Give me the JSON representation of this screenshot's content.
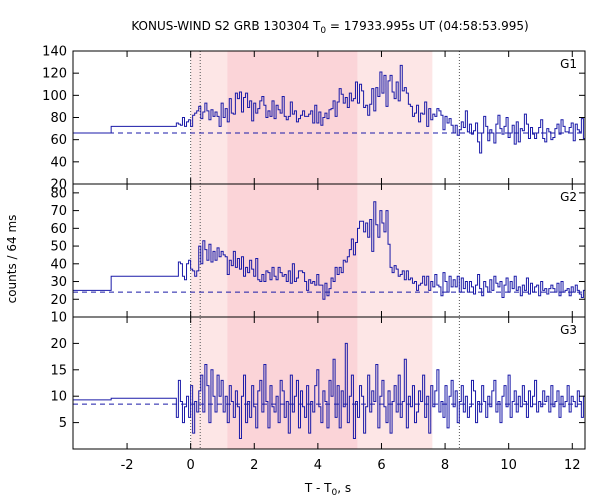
{
  "chart_data": {
    "type": "line",
    "title": "KONUS-WIND S2 GRB 130304 T",
    "title_sub": "0",
    "title_rest": " = 17933.995s UT (04:58:53.995)",
    "xlabel": "T - T",
    "xlabel_sub": "0",
    "xlabel_rest": ", s",
    "ylabel": "counts / 64 ms",
    "xlim": [
      -3.7,
      12.4
    ],
    "x_ticks": [
      -2,
      0,
      2,
      4,
      6,
      8,
      10,
      12
    ],
    "x_tick_labels": [
      "-2",
      "0",
      "2",
      "4",
      "6",
      "8",
      "10",
      "12"
    ],
    "shaded_regions": [
      {
        "x0": 0.0,
        "x1": 1.15,
        "color": "#fde6e6"
      },
      {
        "x0": 1.15,
        "x1": 5.25,
        "color": "#fbd4d8"
      },
      {
        "x0": 5.25,
        "x1": 7.6,
        "color": "#fde6e6"
      }
    ],
    "vertical_lines": [
      0.0,
      0.3,
      8.45
    ],
    "line_color": "#1a1aa8",
    "background_color": "#1a1aa8",
    "panels": [
      {
        "name": "G1",
        "ylim": [
          20,
          140
        ],
        "y_ticks": [
          20,
          40,
          60,
          80,
          100,
          120,
          140
        ],
        "y_tick_labels": [
          "20",
          "40",
          "60",
          "80",
          "100",
          "120",
          "140"
        ],
        "background": 66,
        "bins": [
          {
            "x0": -3.7,
            "x1": -2.5,
            "y": 66
          },
          {
            "x0": -2.5,
            "x1": -0.45,
            "y": 72
          }
        ],
        "start": -0.45,
        "dt": 0.064,
        "values": [
          75,
          74,
          73,
          80,
          72,
          76,
          78,
          72,
          82,
          84,
          86,
          90,
          79,
          85,
          93,
          86,
          78,
          87,
          81,
          85,
          81,
          72,
          93,
          80,
          88,
          76,
          97,
          84,
          83,
          102,
          97,
          103,
          85,
          98,
          102,
          89,
          95,
          77,
          93,
          84,
          88,
          95,
          99,
          91,
          80,
          86,
          81,
          95,
          79,
          91,
          87,
          84,
          99,
          81,
          78,
          81,
          94,
          83,
          86,
          76,
          79,
          82,
          86,
          81,
          81,
          83,
          86,
          75,
          91,
          75,
          85,
          73,
          80,
          84,
          79,
          87,
          88,
          95,
          81,
          94,
          106,
          101,
          93,
          98,
          89,
          102,
          95,
          97,
          112,
          93,
          110,
          104,
          89,
          91,
          82,
          92,
          106,
          86,
          107,
          99,
          121,
          102,
          118,
          90,
          113,
          118,
          103,
          97,
          112,
          95,
          127,
          104,
          107,
          102,
          92,
          90,
          81,
          84,
          91,
          76,
          84,
          83,
          94,
          72,
          88,
          78,
          83,
          81,
          88,
          86,
          82,
          69,
          81,
          75,
          79,
          73,
          66,
          73,
          64,
          69,
          76,
          71,
          86,
          67,
          74,
          65,
          68,
          75,
          58,
          48,
          66,
          81,
          72,
          59,
          69,
          66,
          57,
          74,
          82,
          70,
          65,
          72,
          80,
          62,
          66,
          73,
          56,
          76,
          58,
          70,
          68,
          83,
          74,
          61,
          71,
          65,
          61,
          66,
          71,
          78,
          61,
          58,
          70,
          67,
          60,
          62,
          70,
          74,
          65,
          78,
          72,
          67,
          67,
          71,
          75,
          59,
          74,
          69,
          67,
          79,
          61,
          66,
          72,
          73,
          63,
          74,
          68,
          63,
          75,
          66,
          69,
          62,
          65,
          58,
          65
        ]
      },
      {
        "name": "G2",
        "ylim": [
          10,
          85
        ],
        "y_ticks": [
          10,
          20,
          30,
          40,
          50,
          60,
          70,
          80
        ],
        "y_tick_labels": [
          "10",
          "20",
          "30",
          "40",
          "50",
          "60",
          "70",
          "80"
        ],
        "background": 24,
        "bins": [
          {
            "x0": -3.7,
            "x1": -2.5,
            "y": 25
          },
          {
            "x0": -2.5,
            "x1": -0.45,
            "y": 33
          }
        ],
        "start": -0.45,
        "dt": 0.064,
        "values": [
          33,
          41,
          40,
          33,
          31,
          40,
          42,
          37,
          36,
          33,
          36,
          50,
          40,
          53,
          48,
          42,
          51,
          41,
          47,
          42,
          49,
          44,
          47,
          45,
          44,
          34,
          42,
          39,
          47,
          38,
          43,
          37,
          44,
          33,
          38,
          35,
          42,
          37,
          33,
          43,
          31,
          30,
          34,
          30,
          36,
          35,
          31,
          38,
          33,
          31,
          38,
          35,
          33,
          34,
          30,
          36,
          29,
          40,
          30,
          32,
          36,
          36,
          35,
          30,
          25,
          31,
          29,
          30,
          28,
          34,
          28,
          28,
          20,
          29,
          22,
          26,
          32,
          30,
          38,
          34,
          38,
          35,
          42,
          41,
          44,
          48,
          54,
          45,
          52,
          60,
          64,
          64,
          58,
          63,
          55,
          65,
          47,
          75,
          62,
          55,
          70,
          63,
          58,
          70,
          51,
          38,
          35,
          39,
          37,
          33,
          34,
          36,
          31,
          36,
          31,
          32,
          29,
          30,
          25,
          28,
          29,
          33,
          28,
          33,
          25,
          30,
          27,
          34,
          28,
          27,
          22,
          35,
          30,
          24,
          33,
          27,
          31,
          27,
          33,
          24,
          32,
          26,
          30,
          24,
          30,
          27,
          23,
          28,
          34,
          26,
          22,
          30,
          27,
          24,
          31,
          25,
          33,
          29,
          27,
          30,
          21,
          28,
          32,
          24,
          30,
          26,
          33,
          25,
          27,
          22,
          28,
          25,
          32,
          23,
          29,
          24,
          27,
          28,
          22,
          30,
          25,
          26,
          23,
          26,
          28,
          26,
          24,
          29,
          22,
          30,
          24,
          25,
          26,
          22,
          27,
          24,
          28,
          25,
          23,
          21,
          25,
          24,
          26,
          19,
          23,
          26,
          21,
          24,
          22,
          20
        ]
      },
      {
        "name": "G3",
        "ylim": [
          0,
          25
        ],
        "y_ticks": [
          5,
          10,
          15,
          20
        ],
        "y_tick_labels": [
          "5",
          "10",
          "15",
          "20"
        ],
        "background": 8.5,
        "bins": [
          {
            "x0": -3.7,
            "x1": -2.5,
            "y": 9.3
          },
          {
            "x0": -2.5,
            "x1": -0.45,
            "y": 9.6
          }
        ],
        "start": -0.45,
        "dt": 0.064,
        "values": [
          6,
          13,
          9,
          5,
          8,
          10,
          6,
          12,
          3,
          9,
          7,
          11,
          14,
          7,
          16,
          12,
          5,
          15,
          10,
          7,
          14,
          10,
          13,
          7,
          10,
          5,
          12,
          9,
          6,
          11,
          8,
          2,
          10,
          14,
          5,
          9,
          6,
          12,
          8,
          4,
          11,
          13,
          7,
          16,
          9,
          4,
          12,
          8,
          7,
          10,
          5,
          13,
          11,
          6,
          9,
          3,
          14,
          7,
          10,
          13,
          4,
          11,
          8,
          6,
          12,
          3,
          9,
          7,
          12,
          15,
          8,
          5,
          11,
          9,
          4,
          13,
          10,
          17,
          6,
          12,
          4,
          11,
          8,
          20,
          5,
          10,
          14,
          2,
          9,
          6,
          12,
          10,
          3,
          8,
          14,
          7,
          11,
          9,
          16,
          4,
          10,
          13,
          8,
          5,
          11,
          3,
          9,
          12,
          7,
          14,
          6,
          9,
          17,
          4,
          10,
          8,
          12,
          5,
          7,
          11,
          9,
          14,
          6,
          10,
          3,
          12,
          8,
          11,
          15,
          7,
          9,
          6,
          12,
          4,
          10,
          13,
          8,
          11,
          5,
          9,
          12,
          7,
          10,
          6,
          8,
          13,
          11,
          5,
          9,
          7,
          12,
          9,
          6,
          10,
          8,
          11,
          13,
          7,
          9,
          5,
          10,
          12,
          8,
          14,
          6,
          9,
          11,
          7,
          10,
          8,
          12,
          9,
          6,
          11,
          8,
          10,
          13,
          7,
          9,
          8,
          11,
          9,
          10,
          7,
          12,
          8,
          9,
          11,
          6,
          10,
          8,
          9,
          12,
          7,
          10,
          9,
          8,
          11,
          9,
          6,
          10,
          8,
          12,
          9,
          7,
          11,
          9,
          8,
          10,
          9,
          8,
          11,
          7,
          9,
          10,
          8
        ]
      }
    ]
  }
}
